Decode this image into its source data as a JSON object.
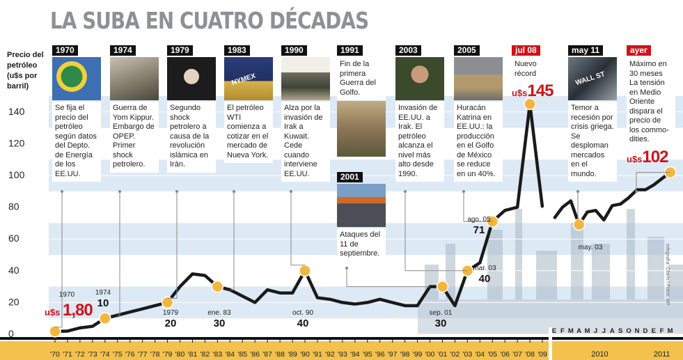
{
  "title": "LA SUBA EN CUATRO DÉCADAS",
  "ylabel_lines": [
    "Precio del",
    "petróleo",
    "(u$s por",
    "barril)"
  ],
  "credit": "Infografía: Clarín / Fotos: AP",
  "colors": {
    "line": "#1a1a1a",
    "marker": "#f4b63e",
    "band_blue": "#dde9f5",
    "axis_band": "#f2c14e",
    "red": "#d0121b"
  },
  "events": [
    {
      "year": "1970",
      "text": "Se fija el precio del petróleo según datos del Depto. de Energía de los EE.UU.",
      "photo": "energy-department-seal"
    },
    {
      "year": "1974",
      "text": "Guerra de Yom Kippur. Embargo de OPEP. Primer shock petrolero.",
      "photo": "soldier-portrait"
    },
    {
      "year": "1979",
      "text": "Segundo shock petrolero a causa de la revolución islámica en Irán.",
      "photo": "cleric-portrait"
    },
    {
      "year": "1983",
      "text": "El petróleo WTI comienza a cotizar en el mercado de Nueva York.",
      "photo": "nymex-trading-floor",
      "photo_label": "NYMEX"
    },
    {
      "year": "1990",
      "text": "Alza por la invasión de Irak a Kuwait. Cede cuando interviene EE.UU.",
      "photo": "tank-smoke"
    },
    {
      "year": "1991",
      "text": "Fin de la primera Guerra del Golfo.",
      "photo": "soldiers"
    },
    {
      "year": "2001",
      "text": "Ataques del 11 de septiembre.",
      "photo": "towers-smoke"
    },
    {
      "year": "2003",
      "text": "Invasión de EE.UU. a Irak. El petróleo alcanza el nivel más alto desde 1990.",
      "photo": "saddam-portrait"
    },
    {
      "year": "2005",
      "text": "Huracán Katrina en EE.UU.: la producción en el Golfo de México se reduce en un 40%.",
      "photo": "flood-scene"
    },
    {
      "year": "jul 08",
      "text": "Nuevo récord",
      "big": "145",
      "big_prefix": "u$s",
      "red": true
    },
    {
      "year": "may 11",
      "text": "Temor a recesión por crisis griega. Se desploman mercados en el mundo.",
      "photo": "wall-street-sign",
      "photo_label": "WALL ST"
    },
    {
      "year": "ayer",
      "text": "Máximo en 30 meses La tensión en Medio Oriente dispara el precio de los commo-dities.",
      "big": "102",
      "big_prefix": "u$s",
      "red": true
    }
  ],
  "start_label": {
    "prefix": "u$s",
    "value": "1,80"
  },
  "point_labels": [
    {
      "label": "1970"
    },
    {
      "label": "1974",
      "value": "10"
    },
    {
      "label": "1979",
      "value": "20"
    },
    {
      "label": "ene. 83",
      "value": "30"
    },
    {
      "label": "oct. 90",
      "value": "40"
    },
    {
      "label": "sep. 01",
      "value": "30"
    },
    {
      "label": "mar. 03",
      "value": "40"
    },
    {
      "label": "ago. 05",
      "value": "71"
    },
    {
      "label": "may. 03"
    }
  ],
  "chart_data": [
    {
      "type": "line",
      "title": "LA SUBA EN CUATRO DÉCADAS",
      "ylabel": "Precio del petróleo (u$s por barril)",
      "xlabel": "",
      "ylim": [
        0,
        150
      ],
      "yticks": [
        0,
        20,
        40,
        60,
        80,
        100,
        120,
        140
      ],
      "x": [
        "'70",
        "'71",
        "'72",
        "'73",
        "'74",
        "'75",
        "'76",
        "'77",
        "'78",
        "'79",
        "'80",
        "'81",
        "'82",
        "'83",
        "'84",
        "'85",
        "'86",
        "'87",
        "'88",
        "'89",
        "'90",
        "'91",
        "'92",
        "'93",
        "'94",
        "'95",
        "'96",
        "'97",
        "'98",
        "'99",
        "'00",
        "'01",
        "'02",
        "'03",
        "'04",
        "'05",
        "'06",
        "'07",
        "'08",
        "'09"
      ],
      "values": [
        1.8,
        2,
        4,
        5,
        10,
        12,
        14,
        16,
        18,
        20,
        30,
        38,
        37,
        30,
        28,
        24,
        20,
        28,
        26,
        26,
        40,
        23,
        22,
        20,
        19,
        20,
        22,
        20,
        18,
        18,
        30,
        30,
        18,
        40,
        45,
        71,
        78,
        80,
        145,
        80
      ],
      "grid": true,
      "legend": "none"
    },
    {
      "type": "line",
      "ylim": [
        0,
        150
      ],
      "x": [
        "E",
        "F",
        "M",
        "A",
        "M",
        "J",
        "J",
        "A",
        "S",
        "O",
        "N",
        "D",
        "E",
        "F",
        "M"
      ],
      "x_groups": [
        {
          "label": "2010",
          "months": 12
        },
        {
          "label": "2011",
          "months": 3
        }
      ],
      "values": [
        73,
        80,
        84,
        69,
        77,
        78,
        72,
        81,
        82,
        86,
        91,
        91,
        94,
        98,
        102
      ],
      "grid": true,
      "legend": "none"
    }
  ]
}
